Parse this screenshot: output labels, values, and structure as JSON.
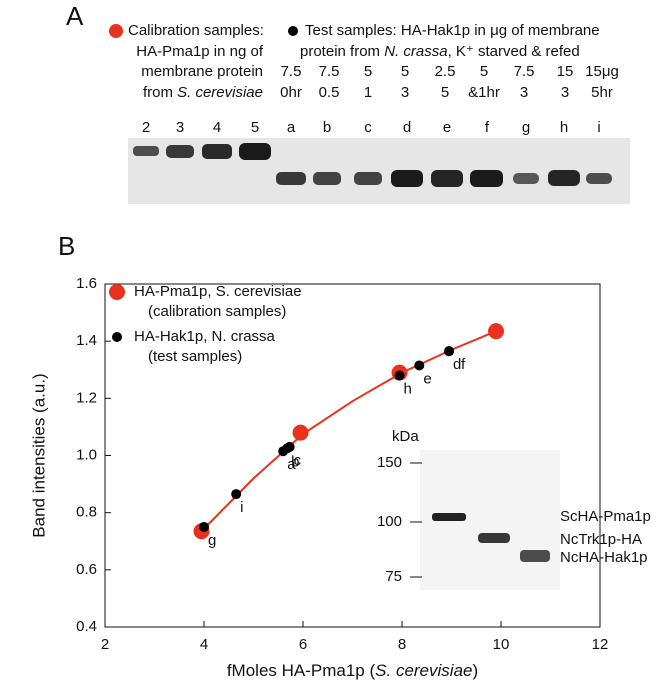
{
  "panel_a": {
    "label": "A",
    "calibration_legend": {
      "color": "#e8321e",
      "lines": [
        [
          "Calibration samples:"
        ],
        [
          "HA-Pma1p in ng of"
        ],
        [
          "membrane protein"
        ],
        [
          "from ",
          "S. cerevisiae"
        ]
      ]
    },
    "test_legend": {
      "color": "#000000",
      "lines": [
        [
          "Test samples: HA-Hak1p in μg of membrane"
        ],
        [
          "protein from ",
          "N. crassa",
          ", K⁺ starved & refed"
        ]
      ]
    },
    "columns": [
      [
        "7.5",
        "0hr"
      ],
      [
        "7.5",
        "0.5"
      ],
      [
        "5",
        "1"
      ],
      [
        "5",
        "3"
      ],
      [
        "2.5",
        "5"
      ],
      [
        "5",
        "&1hr"
      ],
      [
        "7.5",
        "3"
      ],
      [
        "15",
        "3"
      ],
      [
        "15μg",
        "5hr"
      ]
    ],
    "lanes": [
      "2",
      "3",
      "4",
      "5",
      "a",
      "b",
      "c",
      "d",
      "e",
      "f",
      "g",
      "h",
      "i"
    ]
  },
  "chart_data": {
    "type": "scatter",
    "panel_label": "B",
    "x_label": [
      "fMoles HA-Pma1p (",
      "S. cerevisiae",
      ")"
    ],
    "y_label": "Band intensities (a.u.)",
    "xlim": [
      2,
      12
    ],
    "xticks": [
      2,
      4,
      6,
      8,
      10,
      12
    ],
    "ylim": [
      0.4,
      1.6
    ],
    "yticks": [
      0.4,
      0.6,
      0.8,
      {
        "value": 1,
        "label": "1.0"
      },
      1.2,
      1.4,
      1.6
    ],
    "fit_curve": {
      "color": "#e8321e",
      "x": [
        3.95,
        5,
        6,
        7,
        8,
        9,
        9.9
      ],
      "y": [
        0.735,
        0.92,
        1.075,
        1.19,
        1.29,
        1.37,
        1.435
      ]
    },
    "series": [
      {
        "name": "HA-Pma1p, S. cerevisiae",
        "description": "(calibration samples)",
        "color": "#e8321e",
        "size": 8,
        "x": [
          3.95,
          5.95,
          7.95,
          9.9
        ],
        "values": [
          0.735,
          1.08,
          1.29,
          1.435
        ]
      },
      {
        "name": "HA-Hak1p, N. crassa",
        "description": "(test samples)",
        "color": "#000000",
        "size": 5,
        "x": [
          4.0,
          4.65,
          5.6,
          5.68,
          5.73,
          7.95,
          8.35,
          8.95,
          8.95
        ],
        "values": [
          0.75,
          0.865,
          1.015,
          1.025,
          1.03,
          1.28,
          1.315,
          1.365,
          1.365
        ],
        "labels": [
          "g",
          "i",
          "a",
          "b",
          "c",
          "h",
          "e",
          "d",
          "f"
        ]
      }
    ],
    "inset": {
      "unit_label": "kDa",
      "markers": [
        150,
        100,
        75
      ],
      "band_labels": [
        "ScHA-Pma1p",
        "NcTrk1p-HA",
        "NcHA-Hak1p"
      ]
    }
  }
}
